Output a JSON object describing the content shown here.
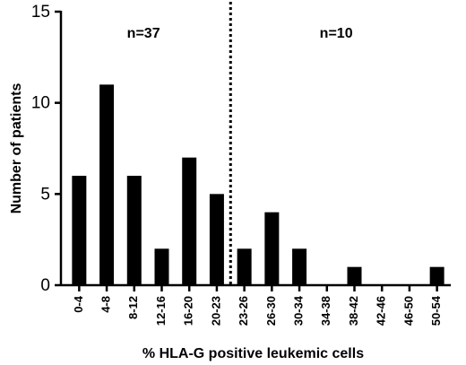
{
  "chart_data": {
    "type": "bar",
    "categories": [
      "0-4",
      "4-8",
      "8-12",
      "12-16",
      "16-20",
      "20-23",
      "23-26",
      "26-30",
      "30-34",
      "34-38",
      "38-42",
      "42-46",
      "46-50",
      "50-54"
    ],
    "values": [
      6,
      11,
      6,
      2,
      7,
      5,
      2,
      4,
      2,
      0,
      1,
      0,
      0,
      1
    ],
    "xlabel": "% HLA-G positive leukemic cells",
    "ylabel": "Number of patients",
    "ylim": [
      0,
      15
    ],
    "yticks": [
      "0",
      "5",
      "10",
      "15"
    ],
    "annotations": [
      {
        "text": "n=37",
        "group": "left"
      },
      {
        "text": "n=10",
        "group": "right"
      }
    ],
    "divider_after_category": "20-23",
    "bar_color": "#000000",
    "grid": false
  }
}
